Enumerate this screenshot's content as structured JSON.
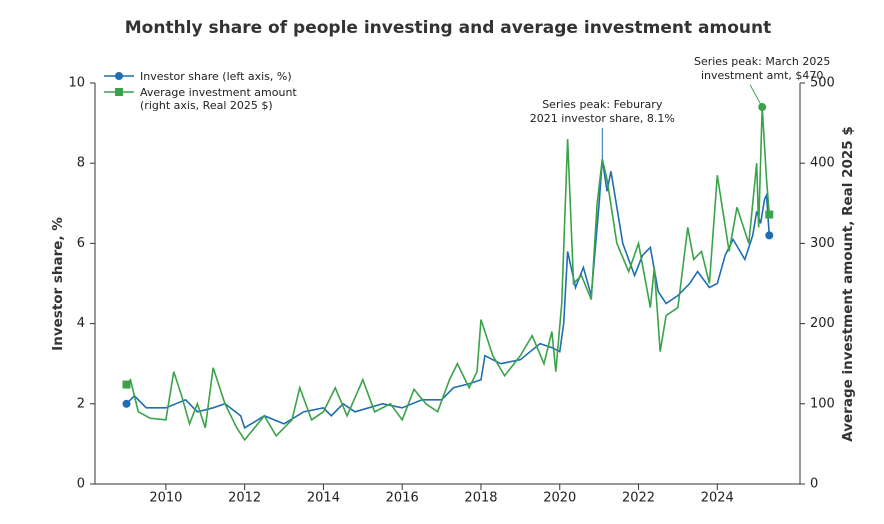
{
  "chart_data": {
    "type": "line",
    "title": "Monthly share of people investing and average investment amount",
    "y_label": "Investor share, %",
    "y2_label": "Average investment amount, Real 2025 $",
    "xlim": [
      2008.2,
      2026.1
    ],
    "xticks": [
      2010,
      2012,
      2014,
      2016,
      2018,
      2020,
      2022,
      2024
    ],
    "ylim": [
      0,
      10
    ],
    "yticks": [
      0,
      2,
      4,
      6,
      8,
      10
    ],
    "y2lim": [
      0,
      500
    ],
    "y2ticks": [
      0,
      100,
      200,
      300,
      400,
      500
    ],
    "grid": false,
    "legend": "top-left",
    "series": [
      {
        "name": "Investor share (left axis, %)",
        "color": "#1f6db3",
        "marker": "circle",
        "axis": "y",
        "x": [
          2009.0,
          2009.2,
          2009.5,
          2010.0,
          2010.5,
          2010.8,
          2011.2,
          2011.5,
          2011.9,
          2012.0,
          2012.5,
          2013.0,
          2013.5,
          2014.0,
          2014.2,
          2014.5,
          2014.8,
          2015.5,
          2016.0,
          2016.5,
          2017.0,
          2017.3,
          2017.7,
          2018.0,
          2018.1,
          2018.5,
          2019.0,
          2019.5,
          2019.8,
          2020.0,
          2020.1,
          2020.2,
          2020.4,
          2020.6,
          2020.8,
          2021.0,
          2021.08,
          2021.2,
          2021.3,
          2021.6,
          2021.9,
          2022.1,
          2022.3,
          2022.5,
          2022.7,
          2023.0,
          2023.3,
          2023.5,
          2023.8,
          2024.0,
          2024.2,
          2024.4,
          2024.7,
          2024.9,
          2025.0,
          2025.1,
          2025.2,
          2025.25,
          2025.32
        ],
        "values": [
          2.0,
          2.2,
          1.9,
          1.9,
          2.1,
          1.8,
          1.9,
          2.0,
          1.7,
          1.4,
          1.7,
          1.5,
          1.8,
          1.9,
          1.7,
          2.0,
          1.8,
          2.0,
          1.9,
          2.1,
          2.1,
          2.4,
          2.5,
          2.6,
          3.2,
          3.0,
          3.1,
          3.5,
          3.4,
          3.3,
          4.0,
          5.8,
          4.9,
          5.4,
          4.7,
          7.0,
          8.1,
          7.3,
          7.8,
          6.0,
          5.2,
          5.7,
          5.9,
          4.8,
          4.5,
          4.7,
          5.0,
          5.3,
          4.9,
          5.0,
          5.7,
          6.1,
          5.6,
          6.2,
          6.8,
          6.5,
          7.1,
          7.2,
          6.2
        ]
      },
      {
        "name": "Average investment amount (right axis, Real 2025 $)",
        "color": "#3aa34a",
        "marker": "square",
        "axis": "y2",
        "x": [
          2009.0,
          2009.1,
          2009.3,
          2009.6,
          2010.0,
          2010.2,
          2010.4,
          2010.6,
          2010.8,
          2011.0,
          2011.2,
          2011.5,
          2011.8,
          2012.0,
          2012.5,
          2012.8,
          2013.2,
          2013.4,
          2013.7,
          2014.0,
          2014.3,
          2014.6,
          2015.0,
          2015.3,
          2015.7,
          2016.0,
          2016.3,
          2016.6,
          2016.9,
          2017.2,
          2017.4,
          2017.7,
          2017.9,
          2018.0,
          2018.3,
          2018.6,
          2019.0,
          2019.3,
          2019.6,
          2019.8,
          2019.9,
          2020.05,
          2020.2,
          2020.35,
          2020.55,
          2020.8,
          2020.95,
          2021.08,
          2021.2,
          2021.45,
          2021.75,
          2022.0,
          2022.3,
          2022.4,
          2022.55,
          2022.7,
          2023.0,
          2023.25,
          2023.4,
          2023.6,
          2023.8,
          2024.0,
          2024.3,
          2024.5,
          2024.8,
          2025.0,
          2025.05,
          2025.14,
          2025.25,
          2025.32
        ],
        "values": [
          124,
          130,
          90,
          82,
          80,
          140,
          110,
          75,
          100,
          70,
          145,
          100,
          70,
          55,
          85,
          60,
          80,
          120,
          80,
          90,
          120,
          85,
          130,
          90,
          100,
          80,
          118,
          100,
          90,
          130,
          150,
          120,
          140,
          205,
          160,
          135,
          160,
          185,
          150,
          190,
          140,
          225,
          430,
          250,
          260,
          230,
          350,
          405,
          380,
          300,
          265,
          300,
          220,
          270,
          165,
          210,
          220,
          320,
          280,
          290,
          250,
          385,
          290,
          345,
          300,
          400,
          320,
          470,
          380,
          336
        ]
      }
    ],
    "annotations": [
      "Series peak: Feburary 2021 investor share, 8.1%",
      "Series peak: March 2025 investment amt, $470"
    ]
  }
}
